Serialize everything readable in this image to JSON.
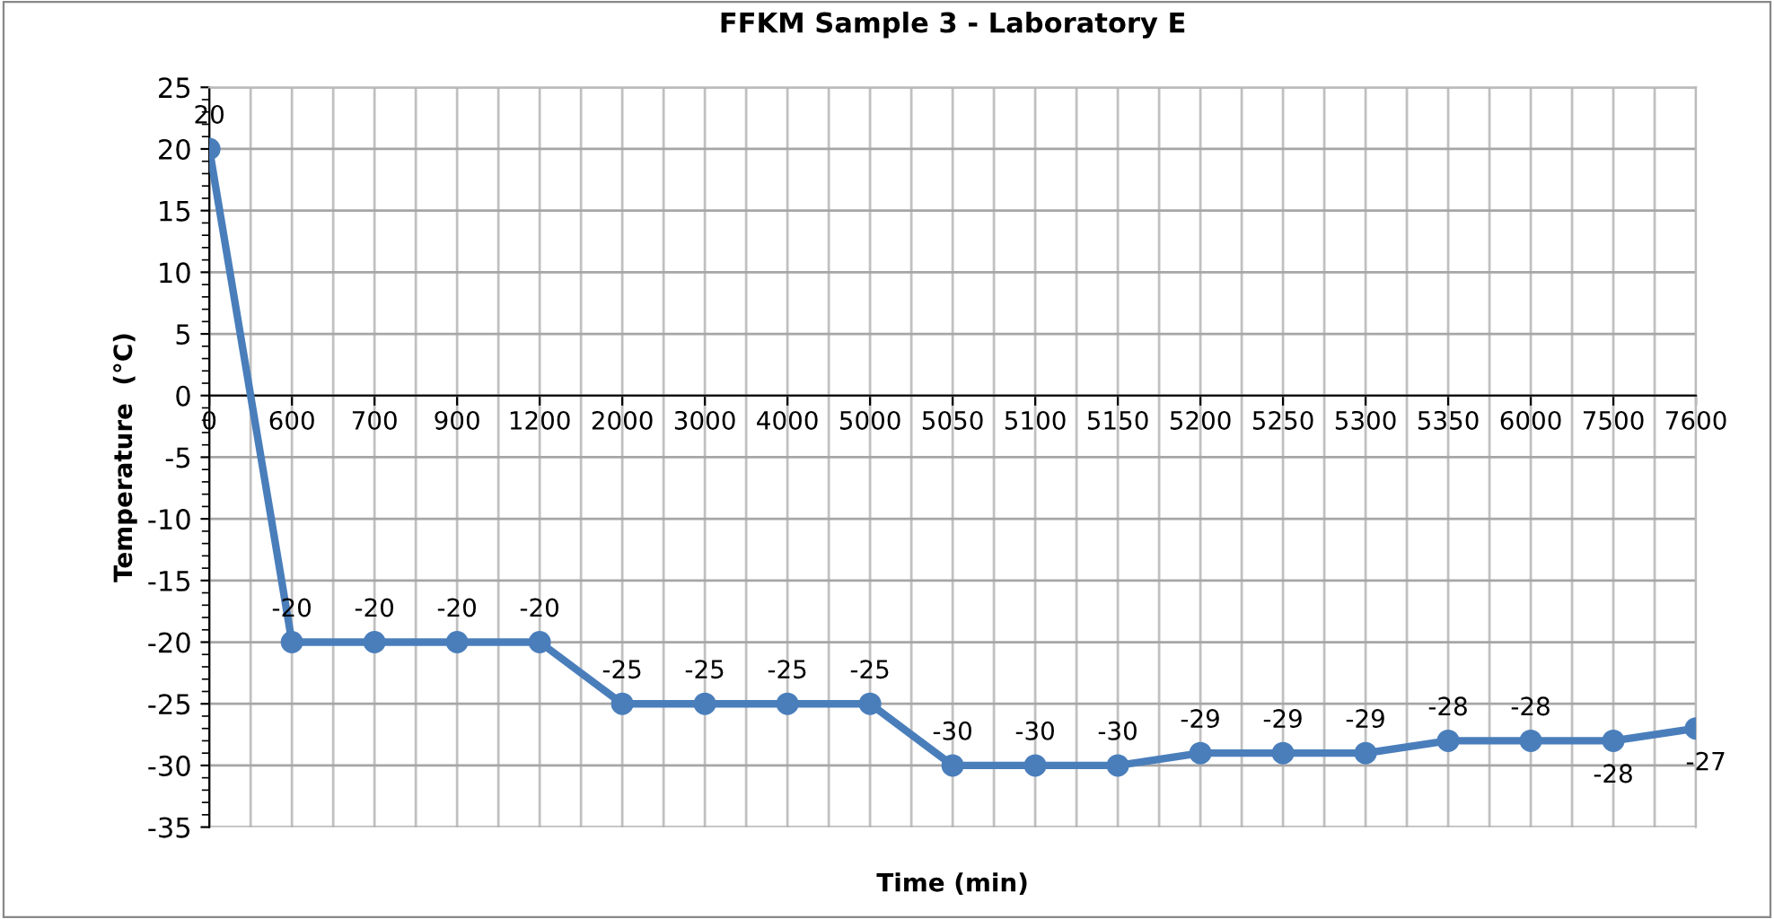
{
  "chart_data": {
    "type": "line",
    "title": "FFKM Sample 3 - Laboratory E",
    "xlabel": "Time (min)",
    "ylabel": "Temperature  (°C)",
    "categories": [
      "0",
      "600",
      "700",
      "900",
      "1200",
      "2000",
      "3000",
      "4000",
      "5000",
      "5050",
      "5100",
      "5150",
      "5200",
      "5250",
      "5300",
      "5350",
      "6000",
      "7500",
      "7600"
    ],
    "series": [
      {
        "color": "#4a7ebb",
        "values": [
          20,
          -20,
          -20,
          -20,
          -20,
          -25,
          -25,
          -25,
          -25,
          -30,
          -30,
          -30,
          -29,
          -29,
          -29,
          -28,
          -28,
          -28,
          -27
        ]
      }
    ],
    "ylim": [
      -35,
      25
    ],
    "yticks": [
      -35,
      -30,
      -25,
      -20,
      -15,
      -10,
      -5,
      0,
      5,
      10,
      15,
      20,
      25
    ],
    "grid": true,
    "marker": "circle",
    "line_style": "solid",
    "data_labels": true,
    "legend": false
  }
}
